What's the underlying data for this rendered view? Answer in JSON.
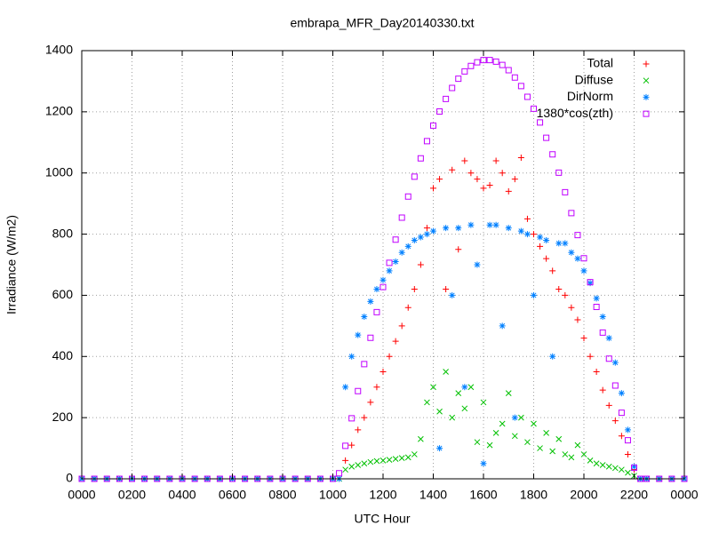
{
  "chart_data": {
    "type": "scatter",
    "title": "embrapa_MFR_Day20140330.txt",
    "x_label": "UTC Hour",
    "y_label": "Irradiance (W/m2)",
    "x": [
      0,
      0.5,
      1,
      1.5,
      2,
      2.5,
      3,
      3.5,
      4,
      4.5,
      5,
      5.5,
      6,
      6.5,
      7,
      7.5,
      8,
      8.5,
      9,
      9.5,
      10,
      10.25,
      10.5,
      10.75,
      11,
      11.25,
      11.5,
      11.75,
      12,
      12.25,
      12.5,
      12.75,
      13,
      13.25,
      13.5,
      13.75,
      14,
      14.25,
      14.5,
      14.75,
      15,
      15.25,
      15.5,
      15.75,
      16,
      16.25,
      16.5,
      16.75,
      17,
      17.25,
      17.5,
      17.75,
      18,
      18.25,
      18.5,
      18.75,
      19,
      19.25,
      19.5,
      19.75,
      20,
      20.25,
      20.5,
      20.75,
      21,
      21.25,
      21.5,
      21.75,
      22,
      22.25,
      22.5,
      23,
      23.5,
      24
    ],
    "series": [
      {
        "name": "Total",
        "color": "#ff0000",
        "marker": "plus",
        "values": [
          0,
          0,
          0,
          0,
          0,
          0,
          0,
          0,
          0,
          0,
          0,
          0,
          0,
          0,
          0,
          0,
          0,
          0,
          0,
          0,
          0,
          0,
          60,
          110,
          160,
          200,
          250,
          300,
          350,
          400,
          450,
          500,
          560,
          620,
          700,
          820,
          950,
          980,
          620,
          1010,
          750,
          1040,
          1000,
          980,
          950,
          960,
          1040,
          1000,
          940,
          980,
          1050,
          850,
          800,
          760,
          720,
          680,
          620,
          600,
          560,
          520,
          460,
          400,
          350,
          290,
          240,
          190,
          140,
          80,
          30,
          0,
          0,
          0,
          0,
          0
        ]
      },
      {
        "name": "Diffuse",
        "color": "#00c000",
        "marker": "cross",
        "values": [
          0,
          0,
          0,
          0,
          0,
          0,
          0,
          0,
          0,
          0,
          0,
          0,
          0,
          0,
          0,
          0,
          0,
          0,
          0,
          0,
          0,
          0,
          30,
          40,
          45,
          50,
          55,
          58,
          60,
          62,
          65,
          68,
          70,
          80,
          130,
          250,
          300,
          220,
          350,
          200,
          280,
          230,
          300,
          120,
          250,
          110,
          150,
          180,
          280,
          140,
          200,
          120,
          180,
          100,
          150,
          90,
          130,
          80,
          70,
          110,
          80,
          60,
          50,
          45,
          40,
          35,
          30,
          20,
          10,
          0,
          0,
          0,
          0,
          0
        ]
      },
      {
        "name": "DirNorm",
        "color": "#0080ff",
        "marker": "star",
        "values": [
          0,
          0,
          0,
          0,
          0,
          0,
          0,
          0,
          0,
          0,
          0,
          0,
          0,
          0,
          0,
          0,
          0,
          0,
          0,
          0,
          0,
          0,
          300,
          400,
          470,
          530,
          580,
          620,
          650,
          680,
          710,
          740,
          760,
          780,
          790,
          800,
          810,
          100,
          820,
          600,
          820,
          300,
          830,
          700,
          50,
          830,
          830,
          500,
          820,
          200,
          810,
          800,
          600,
          790,
          780,
          400,
          770,
          770,
          740,
          720,
          680,
          640,
          590,
          530,
          460,
          380,
          280,
          160,
          40,
          0,
          0,
          0,
          0,
          0
        ]
      },
      {
        "name": "1380*cos(zth)",
        "color": "#c000ff",
        "marker": "square",
        "values": [
          0,
          0,
          0,
          0,
          0,
          0,
          0,
          0,
          0,
          0,
          0,
          0,
          0,
          0,
          0,
          0,
          0,
          0,
          0,
          0,
          0,
          18,
          108,
          198,
          287,
          375,
          461,
          545,
          627,
          706,
          782,
          854,
          923,
          988,
          1048,
          1104,
          1155,
          1201,
          1242,
          1278,
          1308,
          1332,
          1350,
          1362,
          1369,
          1369,
          1364,
          1353,
          1336,
          1312,
          1284,
          1249,
          1210,
          1165,
          1115,
          1061,
          1001,
          937,
          869,
          797,
          721,
          643,
          562,
          478,
          393,
          305,
          216,
          126,
          36,
          0,
          0,
          0,
          0,
          0
        ]
      }
    ],
    "xlim": [
      0,
      24
    ],
    "xticks": [
      {
        "value": 0,
        "label": "0000"
      },
      {
        "value": 2,
        "label": "0200"
      },
      {
        "value": 4,
        "label": "0400"
      },
      {
        "value": 6,
        "label": "0600"
      },
      {
        "value": 8,
        "label": "0800"
      },
      {
        "value": 10,
        "label": "1000"
      },
      {
        "value": 12,
        "label": "1200"
      },
      {
        "value": 14,
        "label": "1400"
      },
      {
        "value": 16,
        "label": "1600"
      },
      {
        "value": 18,
        "label": "1800"
      },
      {
        "value": 20,
        "label": "2000"
      },
      {
        "value": 22,
        "label": "2200"
      },
      {
        "value": 24,
        "label": "0000"
      }
    ],
    "ylim": [
      0,
      1400
    ],
    "yticks": [
      0,
      200,
      400,
      600,
      800,
      1000,
      1200,
      1400
    ],
    "grid": true,
    "legend": "top right"
  }
}
